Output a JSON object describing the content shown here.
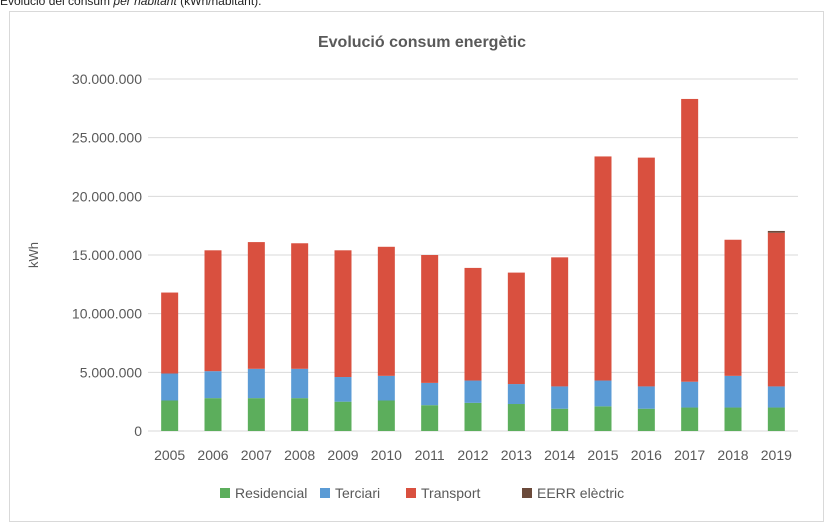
{
  "caption": {
    "prefix": "Evolució del consum",
    "italic": "per habitant",
    "suffix": "(kWh/habitant)."
  },
  "chart_data": {
    "type": "bar",
    "stacked": true,
    "title": "Evolució consum energètic",
    "xlabel": "",
    "ylabel": "kWh",
    "ylim": [
      0,
      30000000
    ],
    "yticks": [
      0,
      5000000,
      10000000,
      15000000,
      20000000,
      25000000,
      30000000
    ],
    "ytick_labels": [
      "0",
      "5.000.000",
      "10.000.000",
      "15.000.000",
      "20.000.000",
      "25.000.000",
      "30.000.000"
    ],
    "grid": true,
    "legend_position": "bottom",
    "categories": [
      "2005",
      "2006",
      "2007",
      "2008",
      "2009",
      "2010",
      "2011",
      "2012",
      "2013",
      "2014",
      "2015",
      "2016",
      "2017",
      "2018",
      "2019"
    ],
    "series": [
      {
        "name": "Residencial",
        "color": "#5cae5c",
        "values": [
          2600000,
          2800000,
          2800000,
          2800000,
          2500000,
          2600000,
          2200000,
          2400000,
          2300000,
          1900000,
          2100000,
          1900000,
          2000000,
          2000000,
          2000000
        ]
      },
      {
        "name": "Terciari",
        "color": "#5b9bd5",
        "values": [
          2300000,
          2300000,
          2500000,
          2500000,
          2100000,
          2100000,
          1900000,
          1900000,
          1700000,
          1900000,
          2200000,
          1900000,
          2200000,
          2700000,
          1800000
        ]
      },
      {
        "name": "Transport",
        "color": "#d9503f",
        "values": [
          6900000,
          10300000,
          10800000,
          10700000,
          10800000,
          11000000,
          10900000,
          9600000,
          9500000,
          11000000,
          19100000,
          19500000,
          24100000,
          11600000,
          13100000
        ]
      },
      {
        "name": "EERR elèctric",
        "color": "#6b4a3a",
        "values": [
          0,
          0,
          0,
          0,
          0,
          0,
          0,
          0,
          0,
          0,
          0,
          0,
          0,
          0,
          150000
        ]
      }
    ]
  }
}
